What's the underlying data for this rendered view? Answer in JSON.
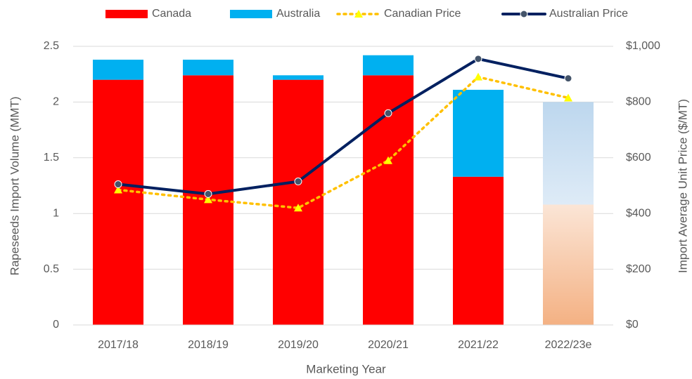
{
  "chart_data": {
    "type": "bar-line",
    "x_label": "Marketing Year",
    "y_label": "Rapeseeds Import Volume (MMT)",
    "y2_label": "Import Average Unit Price ($/MT)",
    "categories": [
      "2017/18",
      "2018/19",
      "2019/20",
      "2020/21",
      "2021/22",
      "2022/23e"
    ],
    "series": [
      {
        "name": "Canada",
        "type": "bar",
        "color": "#ff0000",
        "estimate_colors": [
          "#fbe5d6",
          "#f4b183"
        ],
        "values": [
          2.2,
          2.24,
          2.2,
          2.24,
          1.33,
          1.08
        ]
      },
      {
        "name": "Australia",
        "type": "bar",
        "color": "#00b0f0",
        "estimate_colors": [
          "#bdd7ee",
          "#deebf7"
        ],
        "values": [
          0.18,
          0.14,
          0.04,
          0.18,
          0.78,
          0.92
        ]
      },
      {
        "name": "Canadian Price",
        "type": "line",
        "axis": "y2",
        "color": "#ffc000",
        "marker_color": "#ffff00",
        "dash": true,
        "marker": "triangle",
        "values": [
          485,
          450,
          420,
          590,
          890,
          815
        ]
      },
      {
        "name": "Australian Price",
        "type": "line",
        "axis": "y2",
        "color": "#002060",
        "marker_color": "#44546a",
        "marker": "circle",
        "values": [
          505,
          470,
          515,
          760,
          955,
          885
        ]
      }
    ],
    "ylim": [
      0,
      2.5
    ],
    "yticks": [
      0,
      0.5,
      1,
      1.5,
      2,
      2.5
    ],
    "y2lim": [
      0,
      1000
    ],
    "y2ticks": [
      {
        "value": 0,
        "label": "$0"
      },
      {
        "value": 200,
        "label": "$200"
      },
      {
        "value": 400,
        "label": "$400"
      },
      {
        "value": 600,
        "label": "$600"
      },
      {
        "value": 800,
        "label": "$800"
      },
      {
        "value": 1000,
        "label": "$1,000"
      }
    ],
    "grid": true,
    "legend": "top"
  }
}
